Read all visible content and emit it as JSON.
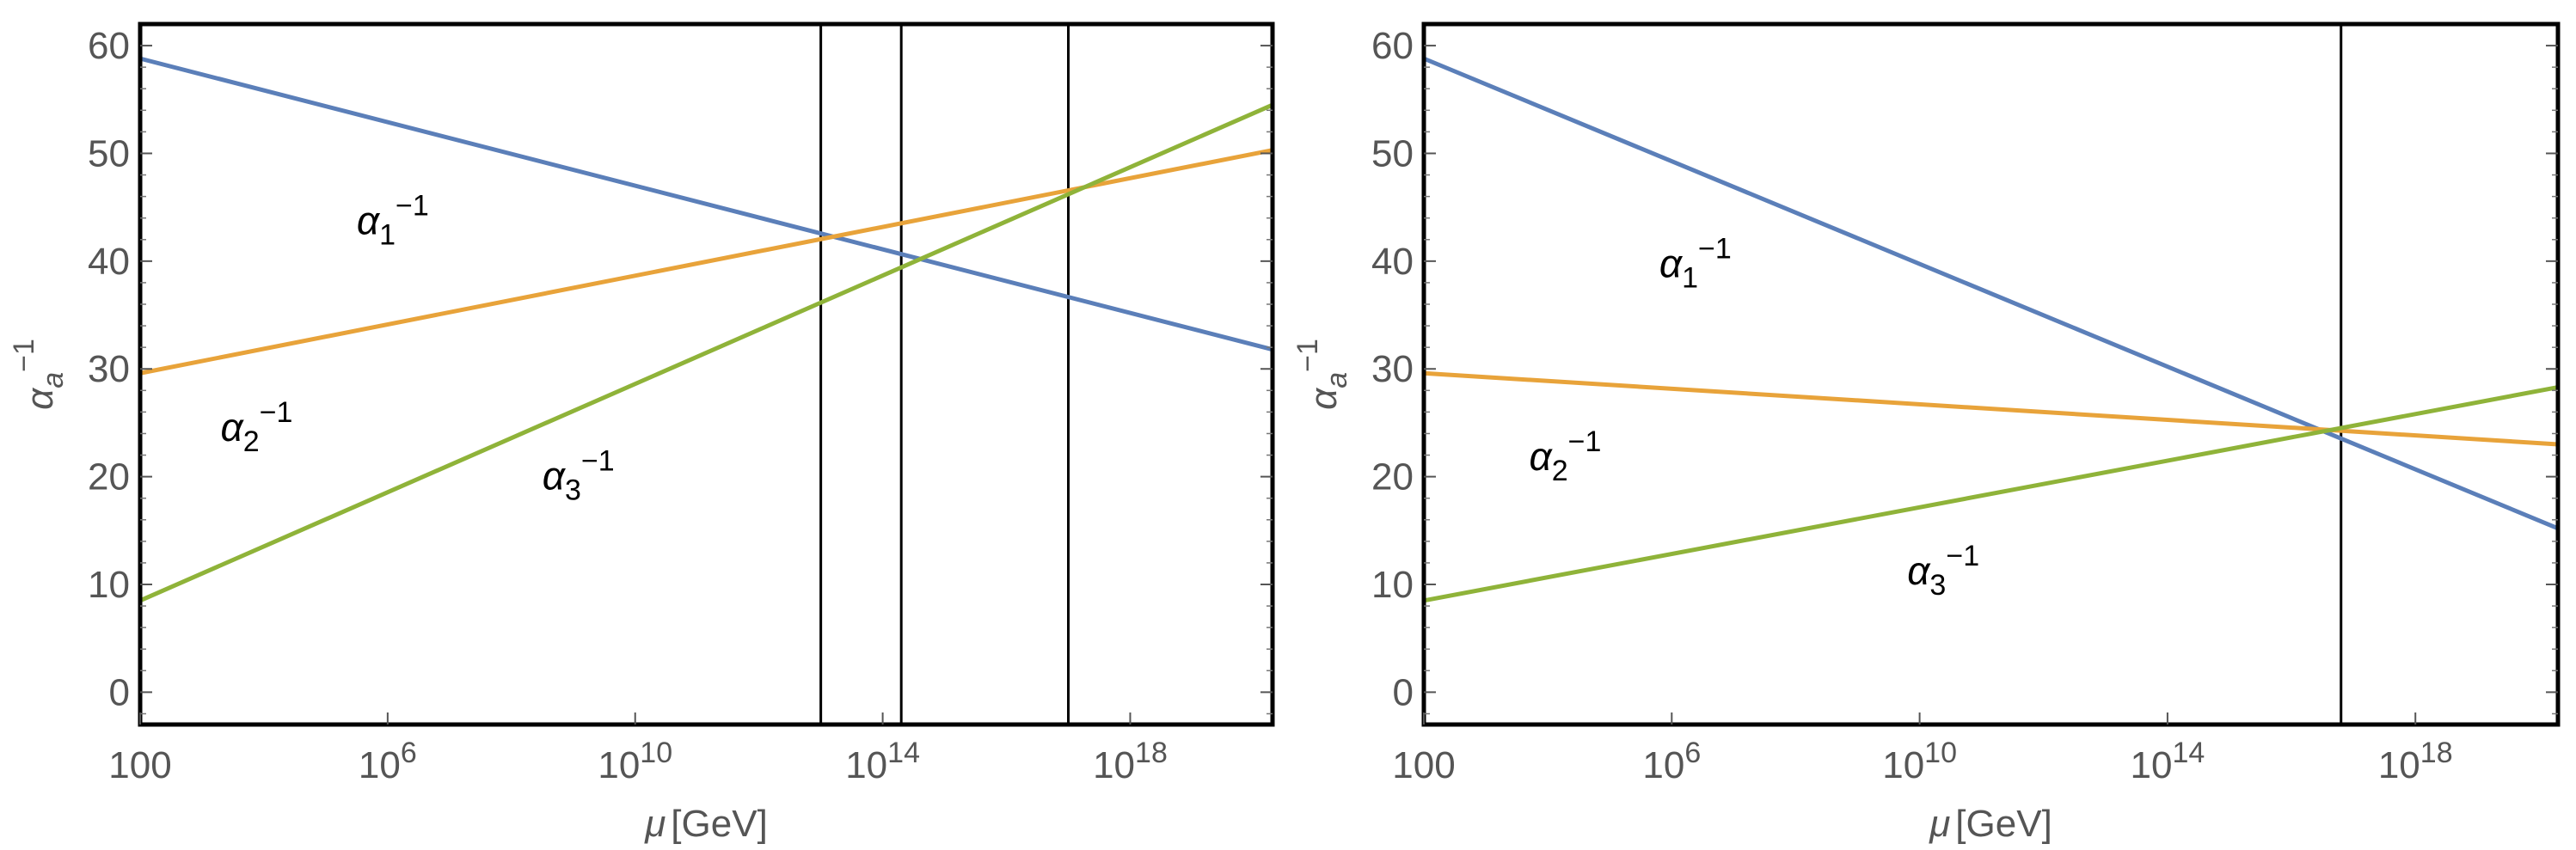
{
  "chart_data": [
    {
      "type": "line",
      "title": "",
      "xlabel_symbol": "μ",
      "xlabel_unit": "[GeV]",
      "ylabel_base": "α",
      "ylabel_sub": "a",
      "ylabel_sup": "−1",
      "x_scale": "log10",
      "xlim_log10": [
        2,
        20.3
      ],
      "ylim": [
        -3,
        62
      ],
      "x_ticks": [
        {
          "log10": 2,
          "base": "100",
          "exp": ""
        },
        {
          "log10": 6,
          "base": "10",
          "exp": "6"
        },
        {
          "log10": 10,
          "base": "10",
          "exp": "10"
        },
        {
          "log10": 14,
          "base": "10",
          "exp": "14"
        },
        {
          "log10": 18,
          "base": "10",
          "exp": "18"
        }
      ],
      "y_ticks": [
        0,
        10,
        20,
        30,
        40,
        50,
        60
      ],
      "series": [
        {
          "key": "a1",
          "color": "#5b7fb9",
          "x_log10": [
            2,
            20.3
          ],
          "y": [
            58.8,
            31.8
          ]
        },
        {
          "key": "a2",
          "color": "#e8a33a",
          "x_log10": [
            2,
            20.3
          ],
          "y": [
            29.6,
            50.3
          ]
        },
        {
          "key": "a3",
          "color": "#8fb339",
          "x_log10": [
            2,
            20.3
          ],
          "y": [
            8.5,
            54.5
          ]
        }
      ],
      "vertical_lines_log10": [
        13.0,
        14.3,
        17.0
      ],
      "annotations": [
        {
          "series": "a1",
          "base": "α",
          "sub": "1",
          "sup": "−1",
          "x_log10": 5.5,
          "y": 42.5
        },
        {
          "series": "a2",
          "base": "α",
          "sub": "2",
          "sup": "−1",
          "x_log10": 3.3,
          "y": 23.3
        },
        {
          "series": "a3",
          "base": "α",
          "sub": "3",
          "sup": "−1",
          "x_log10": 8.5,
          "y": 18.8
        }
      ]
    },
    {
      "type": "line",
      "title": "",
      "xlabel_symbol": "μ",
      "xlabel_unit": "[GeV]",
      "ylabel_base": "α",
      "ylabel_sub": "a",
      "ylabel_sup": "−1",
      "x_scale": "log10",
      "xlim_log10": [
        2,
        20.3
      ],
      "ylim": [
        -3,
        62
      ],
      "x_ticks": [
        {
          "log10": 2,
          "base": "100",
          "exp": ""
        },
        {
          "log10": 6,
          "base": "10",
          "exp": "6"
        },
        {
          "log10": 10,
          "base": "10",
          "exp": "10"
        },
        {
          "log10": 14,
          "base": "10",
          "exp": "14"
        },
        {
          "log10": 18,
          "base": "10",
          "exp": "18"
        }
      ],
      "y_ticks": [
        0,
        10,
        20,
        30,
        40,
        50,
        60
      ],
      "series": [
        {
          "key": "a1",
          "color": "#5b7fb9",
          "x_log10": [
            2,
            20.3
          ],
          "y": [
            58.8,
            15.2
          ]
        },
        {
          "key": "a2",
          "color": "#e8a33a",
          "x_log10": [
            2,
            20.3
          ],
          "y": [
            29.6,
            23.0
          ]
        },
        {
          "key": "a3",
          "color": "#8fb339",
          "x_log10": [
            2,
            20.3
          ],
          "y": [
            8.5,
            28.3
          ]
        }
      ],
      "vertical_lines_log10": [
        16.8
      ],
      "annotations": [
        {
          "series": "a1",
          "base": "α",
          "sub": "1",
          "sup": "−1",
          "x_log10": 5.8,
          "y": 38.5
        },
        {
          "series": "a2",
          "base": "α",
          "sub": "2",
          "sup": "−1",
          "x_log10": 3.7,
          "y": 20.6
        },
        {
          "series": "a3",
          "base": "α",
          "sub": "3",
          "sup": "−1",
          "x_log10": 9.8,
          "y": 10.0
        }
      ]
    }
  ]
}
